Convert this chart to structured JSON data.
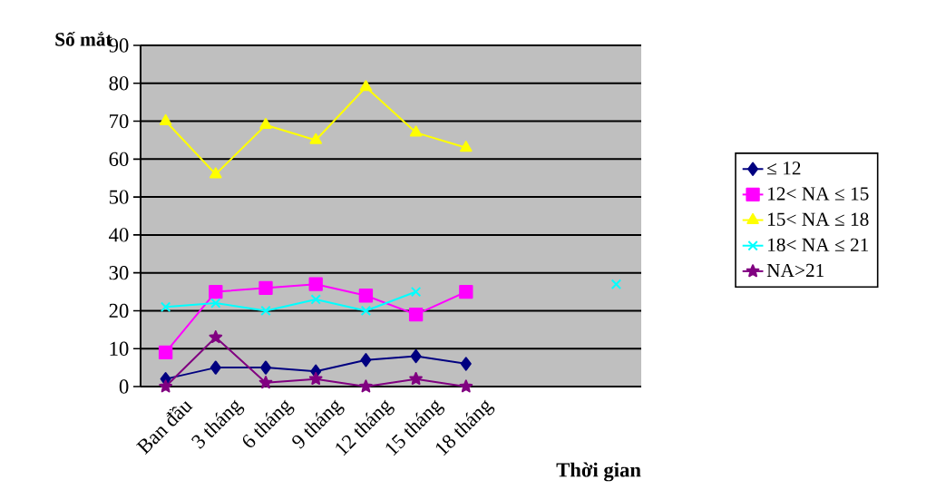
{
  "chart_data": {
    "type": "line",
    "xlabel": "Thời gian",
    "ylabel": "Số mắt",
    "categories": [
      "Ban đầu",
      "3 tháng",
      "6 tháng",
      "9 tháng",
      "12 tháng",
      "15 tháng",
      "18 tháng",
      null,
      null,
      null
    ],
    "ylim": [
      0,
      90
    ],
    "yticks": [
      0,
      10,
      20,
      30,
      40,
      50,
      60,
      70,
      80,
      90
    ],
    "grid": "y",
    "legend": "right",
    "line_style": "solid",
    "series": [
      {
        "name": "≤ 12",
        "color": "#000080",
        "marker": "diamond",
        "values": [
          2,
          5,
          5,
          4,
          7,
          8,
          6,
          null,
          null,
          null
        ]
      },
      {
        "name": "12< NA ≤ 15",
        "color": "#ff00ff",
        "marker": "square",
        "values": [
          9,
          25,
          26,
          27,
          24,
          19,
          25,
          null,
          null,
          null
        ]
      },
      {
        "name": "15< NA ≤ 18",
        "color": "#ffff00",
        "marker": "triangle",
        "values": [
          70,
          56,
          69,
          65,
          79,
          67,
          63,
          null,
          null,
          null
        ]
      },
      {
        "name": "18< NA ≤ 21",
        "color": "#00ffff",
        "marker": "cross",
        "values": [
          21,
          22,
          20,
          23,
          20,
          25,
          null,
          null,
          null,
          27
        ]
      },
      {
        "name": "NA>21",
        "color": "#800080",
        "marker": "star",
        "values": [
          0,
          13,
          1,
          2,
          0,
          2,
          0,
          null,
          null,
          null
        ]
      }
    ]
  }
}
